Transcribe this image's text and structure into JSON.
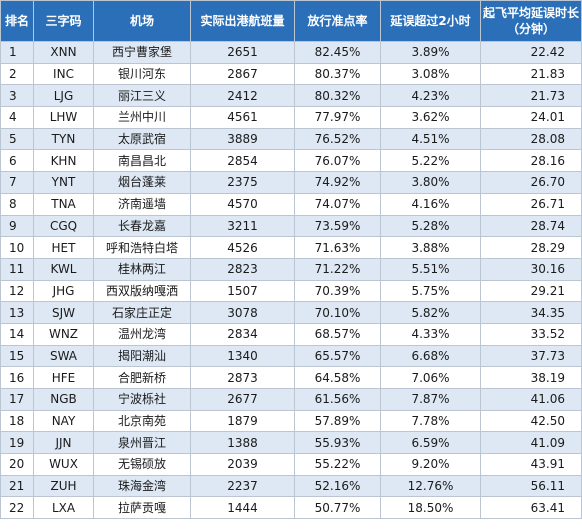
{
  "headers": {
    "rank": "排名",
    "code": "三字码",
    "airport": "机场",
    "flights": "实际出港航班量",
    "ontime": "放行准点率",
    "over2h": "延误超过2小时",
    "avg_delay_line1": "起飞平均延误时长",
    "avg_delay_line2": "（分钟）"
  },
  "rows": [
    {
      "rank": "1",
      "code": "XNN",
      "airport": "西宁曹家堡",
      "flights": "2651",
      "ontime": "82.45%",
      "over2h": "3.89%",
      "delay": "22.42"
    },
    {
      "rank": "2",
      "code": "INC",
      "airport": "银川河东",
      "flights": "2867",
      "ontime": "80.37%",
      "over2h": "3.08%",
      "delay": "21.83"
    },
    {
      "rank": "3",
      "code": "LJG",
      "airport": "丽江三义",
      "flights": "2412",
      "ontime": "80.32%",
      "over2h": "4.23%",
      "delay": "21.73"
    },
    {
      "rank": "4",
      "code": "LHW",
      "airport": "兰州中川",
      "flights": "4561",
      "ontime": "77.97%",
      "over2h": "3.62%",
      "delay": "24.01"
    },
    {
      "rank": "5",
      "code": "TYN",
      "airport": "太原武宿",
      "flights": "3889",
      "ontime": "76.52%",
      "over2h": "4.51%",
      "delay": "28.08"
    },
    {
      "rank": "6",
      "code": "KHN",
      "airport": "南昌昌北",
      "flights": "2854",
      "ontime": "76.07%",
      "over2h": "5.22%",
      "delay": "28.16"
    },
    {
      "rank": "7",
      "code": "YNT",
      "airport": "烟台蓬莱",
      "flights": "2375",
      "ontime": "74.92%",
      "over2h": "3.80%",
      "delay": "26.70"
    },
    {
      "rank": "8",
      "code": "TNA",
      "airport": "济南遥墙",
      "flights": "4570",
      "ontime": "74.07%",
      "over2h": "4.16%",
      "delay": "26.71"
    },
    {
      "rank": "9",
      "code": "CGQ",
      "airport": "长春龙嘉",
      "flights": "3211",
      "ontime": "73.59%",
      "over2h": "5.28%",
      "delay": "28.74"
    },
    {
      "rank": "10",
      "code": "HET",
      "airport": "呼和浩特白塔",
      "flights": "4526",
      "ontime": "71.63%",
      "over2h": "3.88%",
      "delay": "28.29"
    },
    {
      "rank": "11",
      "code": "KWL",
      "airport": "桂林两江",
      "flights": "2823",
      "ontime": "71.22%",
      "over2h": "5.51%",
      "delay": "30.16"
    },
    {
      "rank": "12",
      "code": "JHG",
      "airport": "西双版纳嘎洒",
      "flights": "1507",
      "ontime": "70.39%",
      "over2h": "5.75%",
      "delay": "29.21"
    },
    {
      "rank": "13",
      "code": "SJW",
      "airport": "石家庄正定",
      "flights": "3078",
      "ontime": "70.10%",
      "over2h": "5.82%",
      "delay": "34.35"
    },
    {
      "rank": "14",
      "code": "WNZ",
      "airport": "温州龙湾",
      "flights": "2834",
      "ontime": "68.57%",
      "over2h": "4.33%",
      "delay": "33.52"
    },
    {
      "rank": "15",
      "code": "SWA",
      "airport": "揭阳潮汕",
      "flights": "1340",
      "ontime": "65.57%",
      "over2h": "6.68%",
      "delay": "37.73"
    },
    {
      "rank": "16",
      "code": "HFE",
      "airport": "合肥新桥",
      "flights": "2873",
      "ontime": "64.58%",
      "over2h": "7.06%",
      "delay": "38.19"
    },
    {
      "rank": "17",
      "code": "NGB",
      "airport": "宁波栎社",
      "flights": "2677",
      "ontime": "61.56%",
      "over2h": "7.87%",
      "delay": "41.06"
    },
    {
      "rank": "18",
      "code": "NAY",
      "airport": "北京南苑",
      "flights": "1879",
      "ontime": "57.89%",
      "over2h": "7.78%",
      "delay": "42.50"
    },
    {
      "rank": "19",
      "code": "JJN",
      "airport": "泉州晋江",
      "flights": "1388",
      "ontime": "55.93%",
      "over2h": "6.59%",
      "delay": "41.09"
    },
    {
      "rank": "20",
      "code": "WUX",
      "airport": "无锡硕放",
      "flights": "2039",
      "ontime": "55.22%",
      "over2h": "9.20%",
      "delay": "43.91"
    },
    {
      "rank": "21",
      "code": "ZUH",
      "airport": "珠海金湾",
      "flights": "2237",
      "ontime": "52.16%",
      "over2h": "12.76%",
      "delay": "56.11"
    },
    {
      "rank": "22",
      "code": "LXA",
      "airport": "拉萨贡嘎",
      "flights": "1444",
      "ontime": "50.77%",
      "over2h": "18.50%",
      "delay": "63.41"
    }
  ],
  "colors": {
    "header_bg": "#2b6fb8",
    "header_text": "#ffffff",
    "stripe": "#dde8f4",
    "border": "#bcc6d2"
  }
}
